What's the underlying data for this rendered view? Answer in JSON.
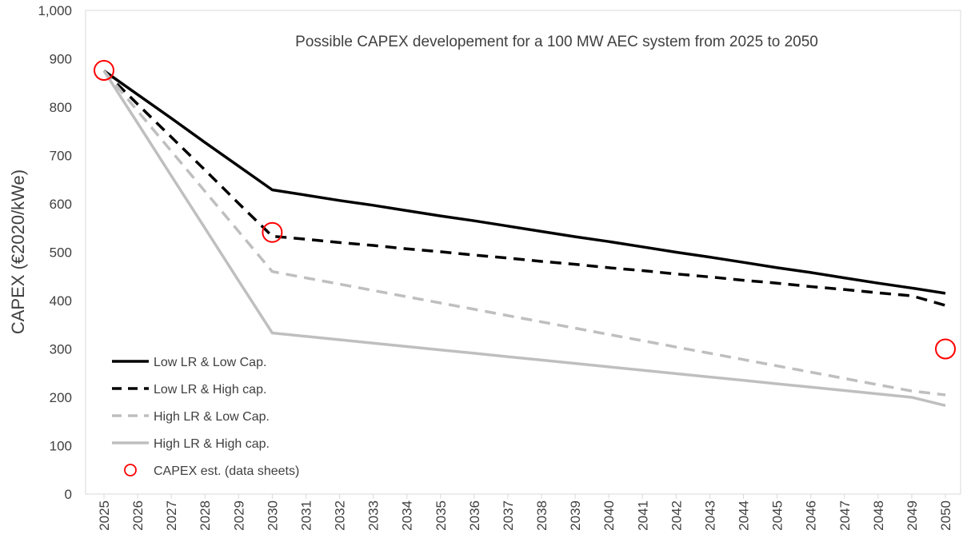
{
  "chart_data": {
    "type": "line",
    "title": "Possible CAPEX developement for a 100 MW AEC system from 2025 to 2050",
    "xlabel": "",
    "ylabel": "CAPEX (€2020/kWe)",
    "ylim": [
      0,
      1000
    ],
    "yticks": [
      "0",
      "100",
      "200",
      "300",
      "400",
      "500",
      "600",
      "700",
      "800",
      "900",
      "1,000"
    ],
    "grid": false,
    "legend_position": "bottom-left",
    "x": [
      2025,
      2026,
      2027,
      2028,
      2029,
      2030,
      2031,
      2032,
      2033,
      2034,
      2035,
      2036,
      2037,
      2038,
      2039,
      2040,
      2041,
      2042,
      2043,
      2044,
      2045,
      2046,
      2047,
      2048,
      2049,
      2050
    ],
    "series": [
      {
        "name": "Low LR & Low Cap.",
        "color": "#000000",
        "dash": "solid",
        "values": [
          875,
          826,
          777,
          727,
          678,
          629,
          618,
          607,
          597,
          586,
          575,
          565,
          554,
          543,
          532,
          522,
          511,
          500,
          490,
          479,
          468,
          458,
          447,
          436,
          426,
          415
        ]
      },
      {
        "name": "Low LR & High cap.",
        "color": "#000000",
        "dash": "dashed",
        "values": [
          875,
          806,
          738,
          670,
          601,
          533,
          527,
          520,
          514,
          507,
          501,
          494,
          488,
          481,
          475,
          468,
          462,
          455,
          449,
          442,
          436,
          429,
          423,
          416,
          410,
          390
        ]
      },
      {
        "name": "High LR & Low Cap.",
        "color": "#bfbfbf",
        "dash": "dashed",
        "values": [
          875,
          792,
          709,
          626,
          543,
          460,
          447,
          434,
          421,
          408,
          395,
          382,
          369,
          356,
          343,
          330,
          317,
          304,
          291,
          278,
          265,
          252,
          239,
          226,
          213,
          205
        ]
      },
      {
        "name": "High LR & High cap.",
        "color": "#bfbfbf",
        "dash": "solid",
        "values": [
          875,
          767,
          658,
          550,
          441,
          333,
          326,
          319,
          312,
          305,
          298,
          291,
          284,
          277,
          270,
          263,
          256,
          249,
          242,
          235,
          228,
          221,
          214,
          207,
          200,
          183
        ]
      }
    ],
    "markers": {
      "name": "CAPEX est. (data sheets)",
      "color": "#ff0000",
      "points": [
        {
          "x": 2025,
          "y": 876
        },
        {
          "x": 2030,
          "y": 541
        },
        {
          "x": 2050,
          "y": 300
        }
      ]
    }
  }
}
